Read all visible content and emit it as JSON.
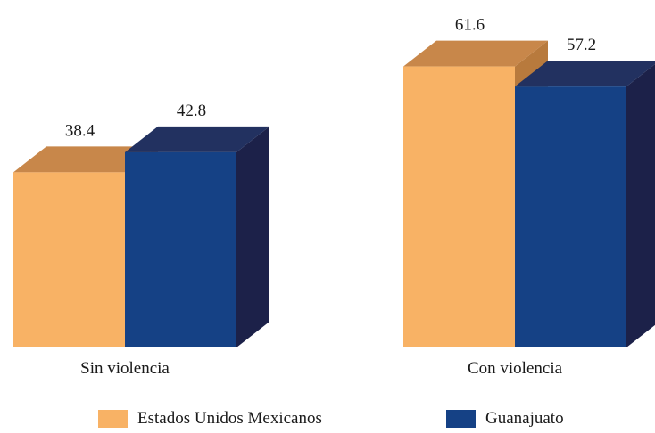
{
  "chart_data": {
    "type": "bar",
    "categories": [
      "Sin violencia",
      "Con violencia"
    ],
    "series": [
      {
        "name": "Estados Unidos Mexicanos",
        "values": [
          38.4,
          61.6
        ]
      },
      {
        "name": "Guanajuato",
        "values": [
          42.8,
          57.2
        ]
      }
    ],
    "value_labels": [
      [
        "38.4",
        "61.6"
      ],
      [
        "42.8",
        "57.2"
      ]
    ],
    "title": "",
    "xlabel": "",
    "ylabel": "",
    "ylim": [
      0,
      65
    ],
    "grid": false,
    "legend": "bottom",
    "style": "3d-bar"
  },
  "colors": {
    "series": [
      {
        "front": "#F8B265",
        "top": "#C8874A",
        "side": "#B87A3D"
      },
      {
        "front": "#154185",
        "top": "#223160",
        "side": "#1C2149"
      }
    ]
  }
}
